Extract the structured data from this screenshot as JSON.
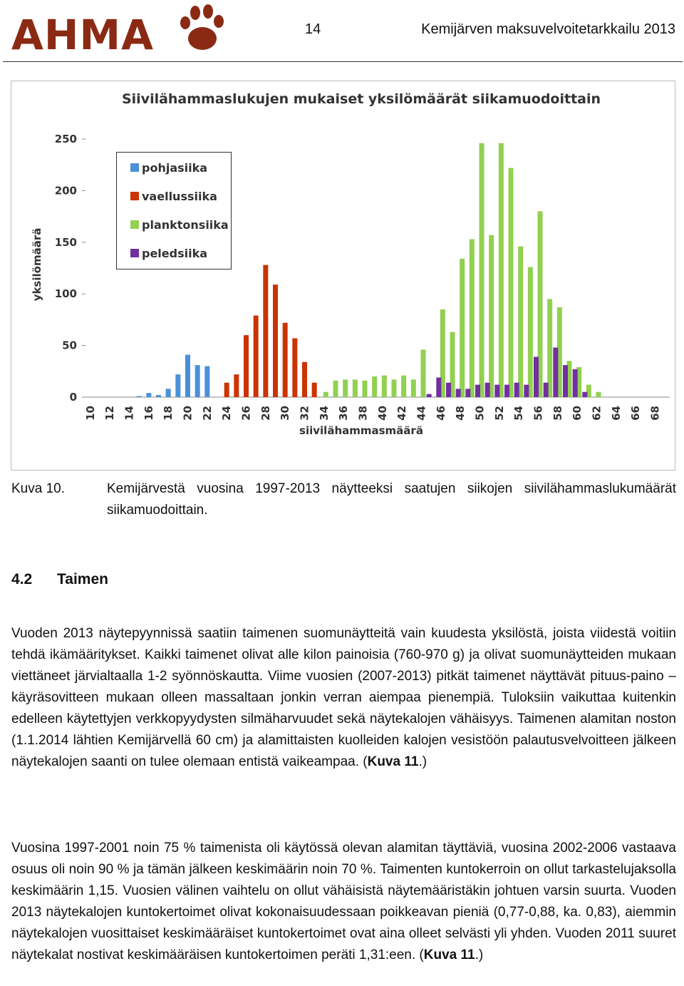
{
  "header": {
    "logo": "AHMA",
    "page": "14",
    "title": "Kemijärven maksuvelvoitetarkkailu 2013"
  },
  "chart_data": {
    "type": "bar",
    "title": "Siivilähammaslukujen mukaiset yksilömäärät siikamuodoittain",
    "x_label": "siivilähammasmäärä",
    "y_label": "yksilömäärä",
    "categories": [
      10,
      null,
      12,
      null,
      14,
      null,
      16,
      null,
      18,
      null,
      20,
      null,
      22,
      null,
      24,
      null,
      26,
      null,
      28,
      null,
      30,
      null,
      32,
      null,
      34,
      null,
      36,
      null,
      38,
      null,
      40,
      null,
      42,
      null,
      44,
      null,
      46,
      null,
      48,
      null,
      50,
      null,
      52,
      null,
      54,
      null,
      56,
      null,
      58,
      null,
      60,
      null,
      62,
      null,
      64,
      null,
      66,
      null,
      68,
      null
    ],
    "series": [
      {
        "name": "pohjasiika",
        "color": "#4a90d9",
        "values": [
          null,
          null,
          null,
          null,
          null,
          1,
          4,
          2,
          8,
          22,
          41,
          31,
          30,
          null,
          null,
          null,
          null,
          null,
          null,
          null,
          null,
          null,
          null,
          null,
          null,
          null,
          null,
          null,
          null,
          null,
          null,
          null,
          null,
          null,
          null,
          null,
          null,
          null,
          null,
          null,
          null,
          null,
          null,
          null,
          null,
          null,
          null,
          null,
          null,
          null,
          null,
          null,
          null,
          null,
          null,
          null,
          null,
          null,
          null,
          null
        ]
      },
      {
        "name": "vaellussiika",
        "color": "#cc3300",
        "values": [
          null,
          null,
          null,
          null,
          null,
          null,
          null,
          null,
          null,
          null,
          null,
          null,
          null,
          null,
          14,
          22,
          60,
          79,
          128,
          109,
          72,
          57,
          34,
          14,
          null,
          null,
          null,
          null,
          null,
          null,
          null,
          null,
          null,
          null,
          null,
          null,
          null,
          null,
          null,
          null,
          null,
          null,
          null,
          null,
          null,
          null,
          null,
          null,
          null,
          null,
          null,
          null,
          null,
          null,
          null,
          null,
          null,
          null,
          null,
          null
        ]
      },
      {
        "name": "planktonsiika",
        "color": "#92d050",
        "values": [
          null,
          null,
          null,
          null,
          null,
          null,
          null,
          null,
          null,
          null,
          null,
          null,
          null,
          null,
          null,
          null,
          null,
          null,
          null,
          null,
          null,
          null,
          null,
          null,
          5,
          16,
          17,
          17,
          16,
          20,
          21,
          17,
          21,
          17,
          46,
          null,
          85,
          63,
          134,
          153,
          246,
          157,
          246,
          222,
          146,
          126,
          180,
          95,
          87,
          35,
          29,
          12,
          5,
          null,
          null,
          null,
          null,
          null,
          null,
          null
        ]
      },
      {
        "name": "peledsiika",
        "color": "#7030a0",
        "values": [
          null,
          null,
          null,
          null,
          null,
          null,
          null,
          null,
          null,
          null,
          null,
          null,
          null,
          null,
          null,
          null,
          null,
          null,
          null,
          null,
          null,
          null,
          null,
          null,
          null,
          null,
          null,
          null,
          null,
          null,
          null,
          null,
          null,
          null,
          null,
          3,
          19,
          14,
          8,
          8,
          12,
          14,
          12,
          12,
          14,
          12,
          39,
          14,
          48,
          31,
          27,
          5,
          null,
          null,
          null,
          null,
          null,
          null,
          null,
          null
        ]
      }
    ],
    "ylim": [
      0,
      250
    ],
    "yticks": [
      0,
      50,
      100,
      150,
      200,
      250
    ],
    "grid": false,
    "legend": "top-left"
  },
  "caption": {
    "label": "Kuva 10.",
    "text": "Kemijärvestä vuosina 1997-2013 näytteeksi saatujen siikojen siivilähammaslukumäärät siikamuodoittain."
  },
  "section": {
    "number": "4.2",
    "title": "Taimen"
  },
  "paragraphs": [
    {
      "text": "Vuoden 2013 näytepyynnissä saatiin taimenen suomunäytteitä vain kuudesta yksilöstä, joista viidestä voitiin tehdä ikämääritykset. Kaikki taimenet olivat alle kilon painoisia (760-970 g) ja olivat suomunäytteiden mukaan viettäneet järvialtaalla 1-2 syönnöskautta. Viime vuosien (2007-2013) pitkät taimenet näyttävät pituus-paino –käyräsovitteen mukaan olleen massaltaan jonkin verran aiempaa pienempiä. Tuloksiin vaikuttaa kuitenkin edelleen käytettyjen verkkopyydysten silmäharvuudet sekä näytekalojen vähäisyys. Taimenen alamitan noston (1.1.2014 lähtien Kemijärvellä 60 cm) ja alamittaisten kuolleiden kalojen vesistöön palautusvelvoitteen jälkeen näytekalojen saanti on tulee olemaan entistä vaikeampaa. (",
      "bold": "Kuva 11",
      "end": ".)"
    },
    {
      "text": "Vuosina 1997-2001 noin 75 % taimenista oli käytössä olevan alamitan täyttäviä, vuosina 2002-2006 vastaava osuus oli noin 90 % ja tämän jälkeen keskimäärin noin 70 %. Taimenten kuntokerroin on ollut tarkastelujaksolla keskimäärin 1,15. Vuosien välinen vaihtelu on ollut vähäisistä näytemääristäkin johtuen varsin suurta. Vuoden 2013 näytekalojen kuntokertoimet olivat kokonaisuudessaan poikkeavan pieniä (0,77-0,88, ka. 0,83), aiemmin näytekalojen vuosittaiset keskimääräiset kuntokertoimet ovat aina olleet selvästi yli yhden. Vuoden 2011 suuret näytekalat nostivat keskimääräisen kuntokertoimen peräti 1,31:een. (",
      "bold": "Kuva 11",
      "end": ".)"
    }
  ]
}
